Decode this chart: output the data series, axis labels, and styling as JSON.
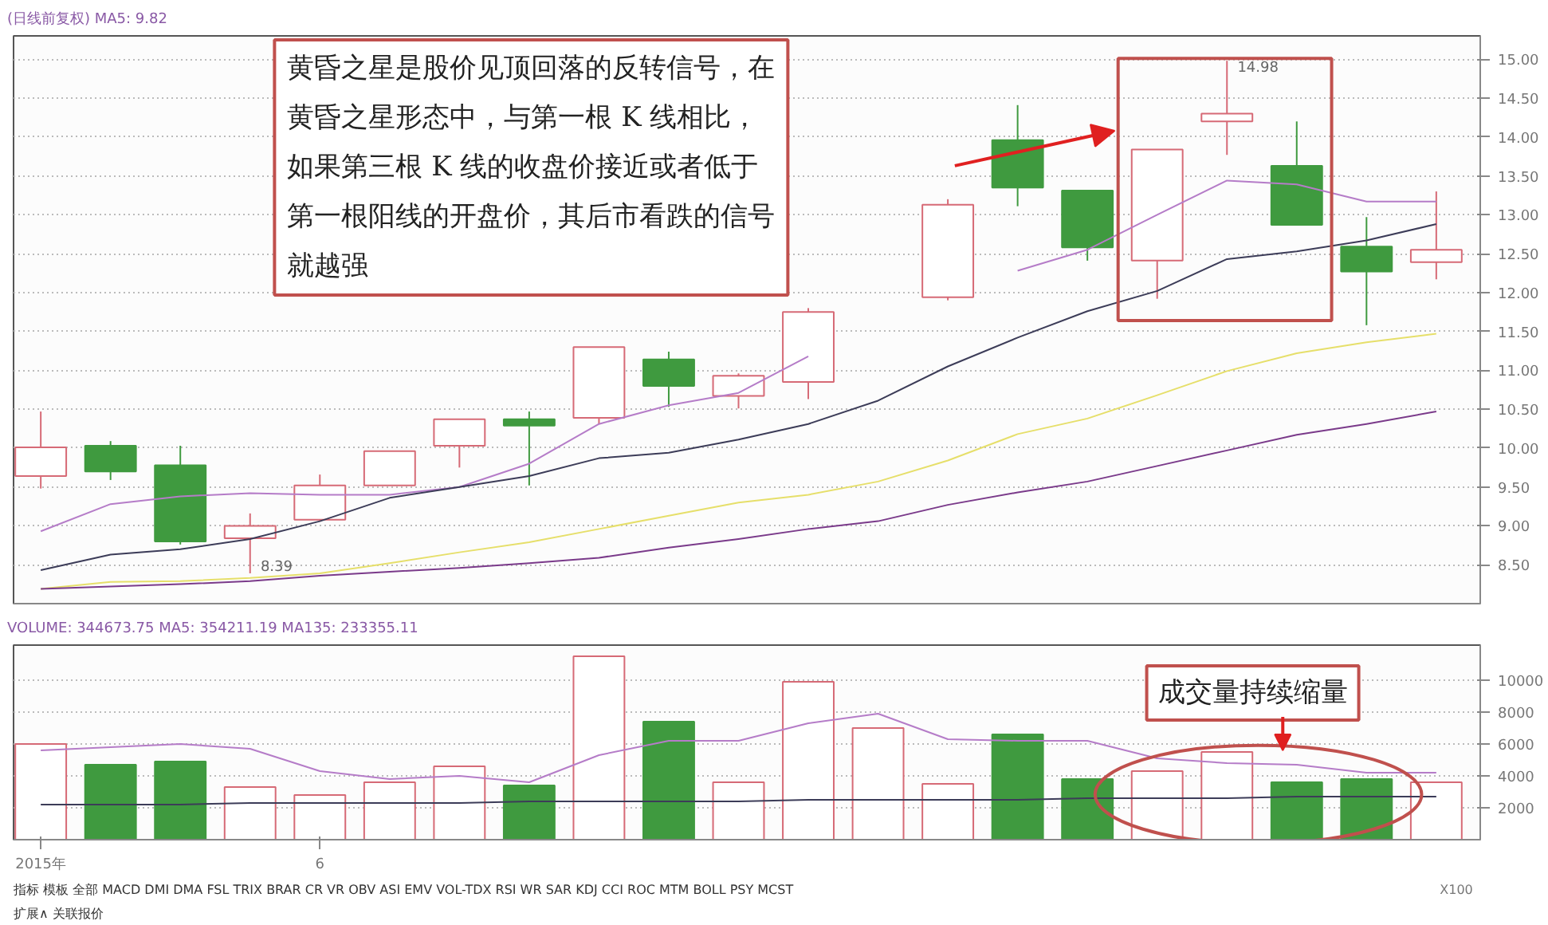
{
  "chart_data": [
    {
      "type": "candlestick",
      "title": "(日线前复权) MA5: 9.82",
      "categories": [
        null,
        null,
        null,
        null,
        null,
        null,
        null,
        null,
        null,
        null,
        null,
        null,
        null,
        null,
        null,
        null,
        null,
        null,
        null,
        null,
        null
      ],
      "ohlc": [
        [
          9.64,
          10.47,
          9.48,
          10.01
        ],
        [
          10.03,
          10.09,
          9.59,
          9.7
        ],
        [
          9.78,
          10.03,
          8.76,
          8.8
        ],
        [
          8.84,
          9.16,
          8.39,
          9.0
        ],
        [
          9.08,
          9.66,
          9.06,
          9.52
        ],
        [
          9.52,
          9.96,
          9.52,
          9.96
        ],
        [
          10.03,
          10.37,
          9.75,
          10.37
        ],
        [
          10.37,
          10.47,
          9.52,
          10.29
        ],
        [
          10.39,
          11.3,
          10.31,
          11.3
        ],
        [
          11.14,
          11.24,
          10.53,
          10.8
        ],
        [
          10.67,
          10.96,
          10.51,
          10.93
        ],
        [
          10.85,
          11.8,
          10.63,
          11.75
        ],
        null,
        [
          11.94,
          13.2,
          11.9,
          13.13
        ],
        [
          13.96,
          14.41,
          13.11,
          13.35
        ],
        [
          13.31,
          13.31,
          12.41,
          12.58
        ],
        [
          12.41,
          13.84,
          11.92,
          13.84
        ],
        [
          14.2,
          14.98,
          13.77,
          14.3
        ],
        [
          13.63,
          14.2,
          12.87,
          12.87
        ],
        [
          12.59,
          12.97,
          11.58,
          12.27
        ],
        [
          12.39,
          13.3,
          12.17,
          12.55
        ]
      ],
      "colors": [
        "#d66a76",
        "#3f9a3f",
        "#3f9a3f",
        "#d66a76",
        "#d66a76",
        "#d66a76",
        "#d66a76",
        "#3f9a3f",
        "#d66a76",
        "#3f9a3f",
        "#d66a76",
        "#d66a76",
        "#d66a76",
        "#d66a76",
        "#3f9a3f",
        "#3f9a3f",
        "#d66a76",
        "#d66a76",
        "#3f9a3f",
        "#3f9a3f",
        "#d66a76"
      ],
      "series": [
        {
          "type": "line",
          "color": "#b57cc8",
          "values": [
            8.93,
            9.28,
            9.38,
            9.42,
            9.4,
            9.4,
            9.5,
            9.8,
            10.31,
            10.55,
            10.71,
            11.18,
            null,
            null,
            12.28,
            12.55,
            13.0,
            13.44,
            13.39,
            13.17,
            13.17
          ]
        },
        {
          "type": "line",
          "color": "#3c3c58",
          "values": [
            8.43,
            8.63,
            8.7,
            8.83,
            9.06,
            9.36,
            9.5,
            9.64,
            9.87,
            9.94,
            10.11,
            10.31,
            10.61,
            11.05,
            11.42,
            11.76,
            12.02,
            12.43,
            12.53,
            12.67,
            12.88
          ]
        },
        {
          "type": "line",
          "color": "#e6df6a",
          "values": [
            8.19,
            8.28,
            8.29,
            8.33,
            8.39,
            8.52,
            8.66,
            8.79,
            8.96,
            9.13,
            9.3,
            9.4,
            9.57,
            9.84,
            10.18,
            10.38,
            10.68,
            10.99,
            11.22,
            11.36,
            11.47
          ]
        },
        {
          "type": "line",
          "color": "#7a3a8a",
          "values": [
            8.19,
            8.22,
            8.25,
            8.29,
            8.36,
            8.41,
            8.46,
            8.52,
            8.59,
            8.72,
            8.83,
            8.96,
            9.06,
            9.27,
            9.43,
            9.57,
            9.77,
            9.97,
            10.17,
            10.31,
            10.47
          ]
        }
      ],
      "ylim": [
        8.0,
        15.3
      ],
      "yticks": [
        {
          "value": 8.5,
          "label": "8.50"
        },
        {
          "value": 9.0,
          "label": "9.00"
        },
        {
          "value": 9.5,
          "label": "9.50"
        },
        {
          "value": 10.0,
          "label": "10.00"
        },
        {
          "value": 10.5,
          "label": "10.50"
        },
        {
          "value": 11.0,
          "label": "11.00"
        },
        {
          "value": 11.5,
          "label": "11.50"
        },
        {
          "value": 12.0,
          "label": "12.00"
        },
        {
          "value": 12.5,
          "label": "12.50"
        },
        {
          "value": 13.0,
          "label": "13.00"
        },
        {
          "value": 13.5,
          "label": "13.50"
        },
        {
          "value": 14.0,
          "label": "14.00"
        },
        {
          "value": 14.5,
          "label": "14.50"
        },
        {
          "value": 15.0,
          "label": "15.00"
        }
      ],
      "grid": "y",
      "tick_labels": "y",
      "annotations": [
        "8.39",
        "14.98",
        "黄昏之星是股价见顶回落的反转信号，在黄昏之星形态中，与第一根 K 线相比，如果第三根 K 线的收盘价接近或者低于第一根阳线的开盘价，其后市看跌的信号就越强"
      ]
    },
    {
      "type": "bar",
      "title": "VOLUME: 344673.75 MA5: 354211.19 MA135: 233355.11",
      "categories": [
        "2015年",
        null,
        null,
        null,
        "6",
        null,
        null,
        null,
        null,
        null,
        null,
        null,
        null,
        null,
        null,
        null,
        null,
        null,
        null,
        null,
        null
      ],
      "values": [
        6000,
        4700,
        4900,
        3300,
        2800,
        3600,
        4600,
        3400,
        11500,
        7400,
        3600,
        9900,
        7000,
        3500,
        6600,
        3800,
        4300,
        5500,
        3600,
        3800,
        3600
      ],
      "colors": [
        "#d66a76",
        "#3f9a3f",
        "#3f9a3f",
        "#d66a76",
        "#d66a76",
        "#d66a76",
        "#d66a76",
        "#3f9a3f",
        "#d66a76",
        "#3f9a3f",
        "#d66a76",
        "#d66a76",
        "#d66a76",
        "#d66a76",
        "#3f9a3f",
        "#3f9a3f",
        "#d66a76",
        "#d66a76",
        "#3f9a3f",
        "#3f9a3f",
        "#d66a76"
      ],
      "series": [
        {
          "type": "line",
          "color": "#b57cc8",
          "values": [
            5600,
            5800,
            6000,
            5700,
            4300,
            3800,
            4000,
            3600,
            5300,
            6200,
            6200,
            7300,
            7900,
            6300,
            6200,
            6200,
            5100,
            4800,
            4700,
            4200,
            4200
          ]
        },
        {
          "type": "line",
          "color": "#3c3c58",
          "values": [
            2200,
            2200,
            2200,
            2300,
            2300,
            2300,
            2300,
            2400,
            2400,
            2400,
            2400,
            2500,
            2500,
            2500,
            2500,
            2600,
            2600,
            2600,
            2700,
            2700,
            2700
          ]
        }
      ],
      "ylim": [
        0,
        12200
      ],
      "yticks": [
        2000,
        4000,
        6000,
        8000,
        10000
      ],
      "grid": "y",
      "annotations": [
        "X100",
        "成交量持续缩量",
        "指标 模板 全部 MACD DMI DMA FSL TRIX BRAR CR VR OBV ASI EMV VOL-TDX RSI WR SAR KDJ CCI ROC MTM BOLL PSY MCST",
        "扩展∧ 关联报价"
      ]
    }
  ]
}
